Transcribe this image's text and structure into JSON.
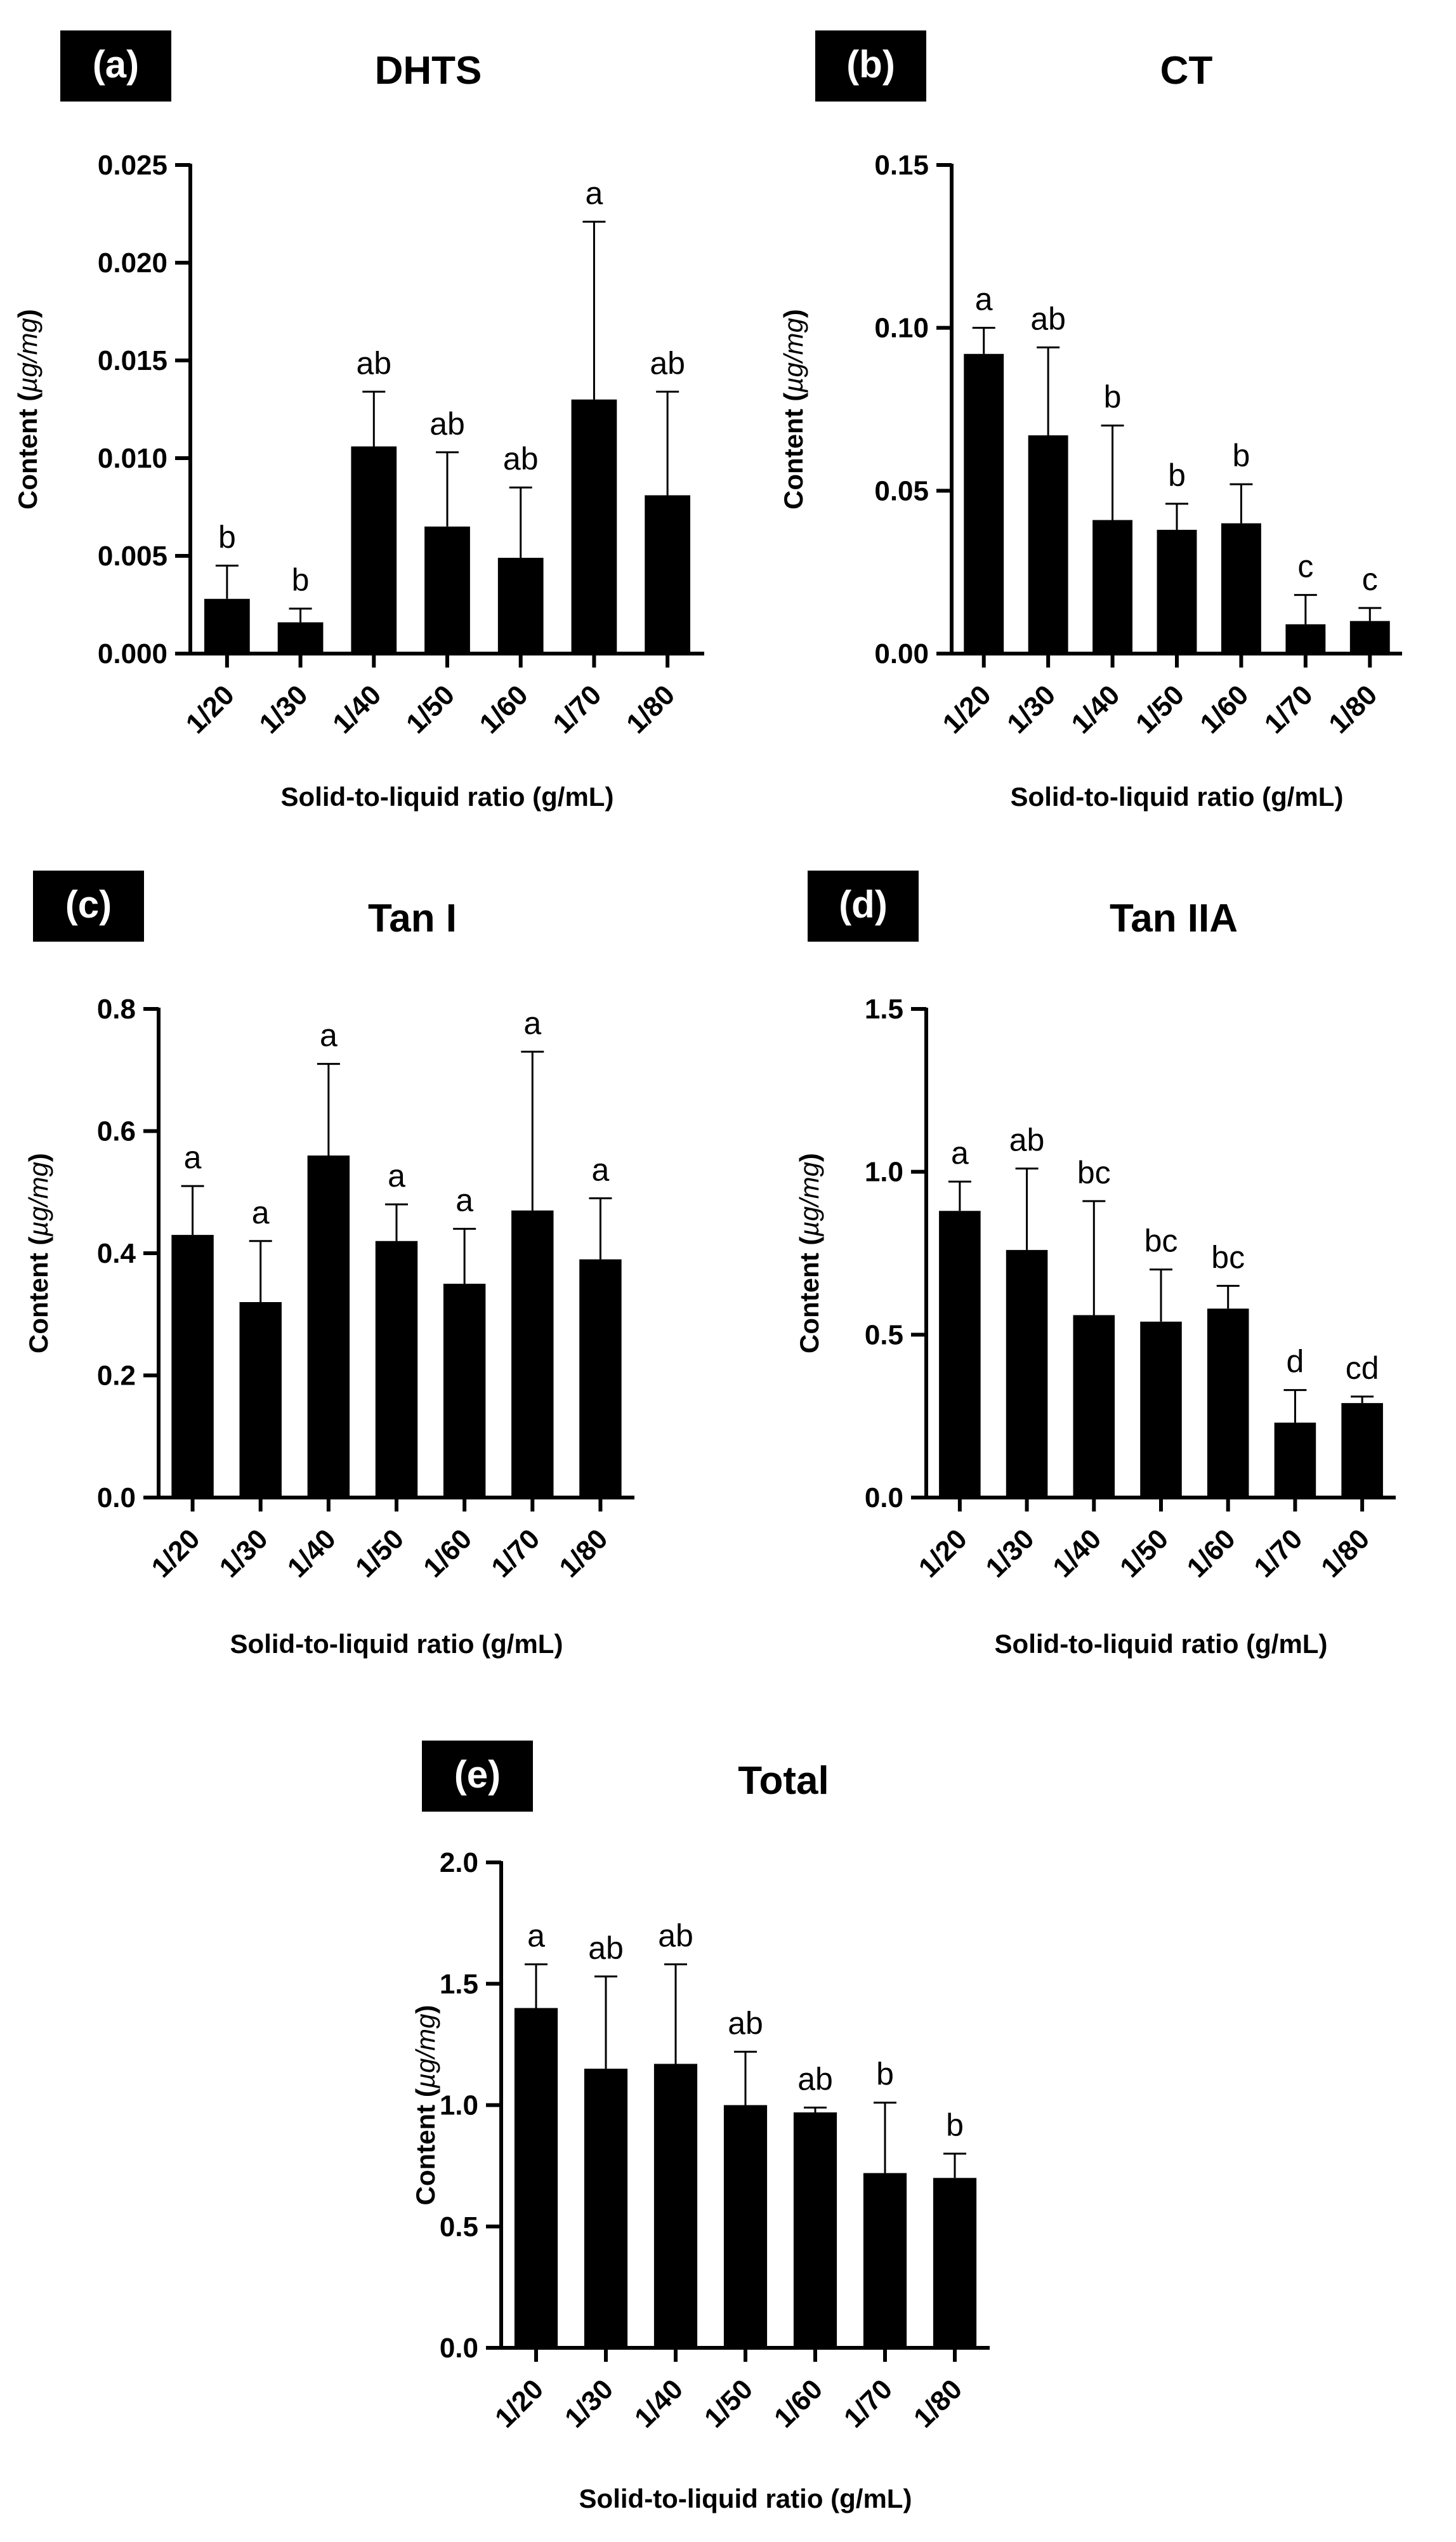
{
  "figure": {
    "units": "µg/mg",
    "categories": [
      "1/20",
      "1/30",
      "1/40",
      "1/50",
      "1/60",
      "1/70",
      "1/80"
    ]
  },
  "chart_data": [
    {
      "type": "bar",
      "panel_label": "(a)",
      "title": "DHTS",
      "xlabel": "Solid-to-liquid ratio (g/mL)",
      "ylabel_prefix": "Content (",
      "ylabel_unit": "µg/mg",
      "ylabel_suffix": ")",
      "ylim": [
        0,
        0.025
      ],
      "yticks": [
        0.0,
        0.005,
        0.01,
        0.015,
        0.02,
        0.025
      ],
      "ytick_labels": [
        "0.000",
        "0.005",
        "0.010",
        "0.015",
        "0.020",
        "0.025"
      ],
      "categories": [
        "1/20",
        "1/30",
        "1/40",
        "1/50",
        "1/60",
        "1/70",
        "1/80"
      ],
      "values": [
        0.0028,
        0.0016,
        0.0106,
        0.0065,
        0.0049,
        0.013,
        0.0081
      ],
      "errors": [
        0.0017,
        0.0007,
        0.0028,
        0.0038,
        0.0036,
        0.0091,
        0.0053
      ],
      "significance": [
        "b",
        "b",
        "ab",
        "ab",
        "ab",
        "a",
        "ab"
      ],
      "bar_color": "#000000"
    },
    {
      "type": "bar",
      "panel_label": "(b)",
      "title": "CT",
      "xlabel": "Solid-to-liquid ratio (g/mL)",
      "ylabel_prefix": "Content (",
      "ylabel_unit": "µg/mg",
      "ylabel_suffix": ")",
      "ylim": [
        0,
        0.15
      ],
      "yticks": [
        0.0,
        0.05,
        0.1,
        0.15
      ],
      "ytick_labels": [
        "0.00",
        "0.05",
        "0.10",
        "0.15"
      ],
      "categories": [
        "1/20",
        "1/30",
        "1/40",
        "1/50",
        "1/60",
        "1/70",
        "1/80"
      ],
      "values": [
        0.092,
        0.067,
        0.041,
        0.038,
        0.04,
        0.009,
        0.01
      ],
      "errors": [
        0.008,
        0.027,
        0.029,
        0.008,
        0.012,
        0.009,
        0.004
      ],
      "significance": [
        "a",
        "ab",
        "b",
        "b",
        "b",
        "c",
        "c"
      ],
      "bar_color": "#000000"
    },
    {
      "type": "bar",
      "panel_label": "(c)",
      "title": "Tan I",
      "xlabel": "Solid-to-liquid ratio (g/mL)",
      "ylabel_prefix": "Content (",
      "ylabel_unit": "µg/mg",
      "ylabel_suffix": ")",
      "ylim": [
        0,
        0.8
      ],
      "yticks": [
        0.0,
        0.2,
        0.4,
        0.6,
        0.8
      ],
      "ytick_labels": [
        "0.0",
        "0.2",
        "0.4",
        "0.6",
        "0.8"
      ],
      "categories": [
        "1/20",
        "1/30",
        "1/40",
        "1/50",
        "1/60",
        "1/70",
        "1/80"
      ],
      "values": [
        0.43,
        0.32,
        0.56,
        0.42,
        0.35,
        0.47,
        0.39
      ],
      "errors": [
        0.08,
        0.1,
        0.15,
        0.06,
        0.09,
        0.26,
        0.1
      ],
      "significance": [
        "a",
        "a",
        "a",
        "a",
        "a",
        "a",
        "a"
      ],
      "bar_color": "#000000"
    },
    {
      "type": "bar",
      "panel_label": "(d)",
      "title": "Tan IIA",
      "xlabel": "Solid-to-liquid ratio (g/mL)",
      "ylabel_prefix": "Content (",
      "ylabel_unit": "µg/mg",
      "ylabel_suffix": ")",
      "ylim": [
        0,
        1.5
      ],
      "yticks": [
        0.0,
        0.5,
        1.0,
        1.5
      ],
      "ytick_labels": [
        "0.0",
        "0.5",
        "1.0",
        "1.5"
      ],
      "categories": [
        "1/20",
        "1/30",
        "1/40",
        "1/50",
        "1/60",
        "1/70",
        "1/80"
      ],
      "values": [
        0.88,
        0.76,
        0.56,
        0.54,
        0.58,
        0.23,
        0.29
      ],
      "errors": [
        0.09,
        0.25,
        0.35,
        0.16,
        0.07,
        0.1,
        0.02
      ],
      "significance": [
        "a",
        "ab",
        "bc",
        "bc",
        "bc",
        "d",
        "cd"
      ],
      "bar_color": "#000000"
    },
    {
      "type": "bar",
      "panel_label": "(e)",
      "title": "Total",
      "xlabel": "Solid-to-liquid ratio (g/mL)",
      "ylabel_prefix": "Content (",
      "ylabel_unit": "µg/mg",
      "ylabel_suffix": ")",
      "ylim": [
        0,
        2.0
      ],
      "yticks": [
        0.0,
        0.5,
        1.0,
        1.5,
        2.0
      ],
      "ytick_labels": [
        "0.0",
        "0.5",
        "1.0",
        "1.5",
        "2.0"
      ],
      "categories": [
        "1/20",
        "1/30",
        "1/40",
        "1/50",
        "1/60",
        "1/70",
        "1/80"
      ],
      "values": [
        1.4,
        1.15,
        1.17,
        1.0,
        0.97,
        0.72,
        0.7
      ],
      "errors": [
        0.18,
        0.38,
        0.41,
        0.22,
        0.02,
        0.29,
        0.1
      ],
      "significance": [
        "a",
        "ab",
        "ab",
        "ab",
        "ab",
        "b",
        "b"
      ],
      "bar_color": "#000000"
    }
  ]
}
